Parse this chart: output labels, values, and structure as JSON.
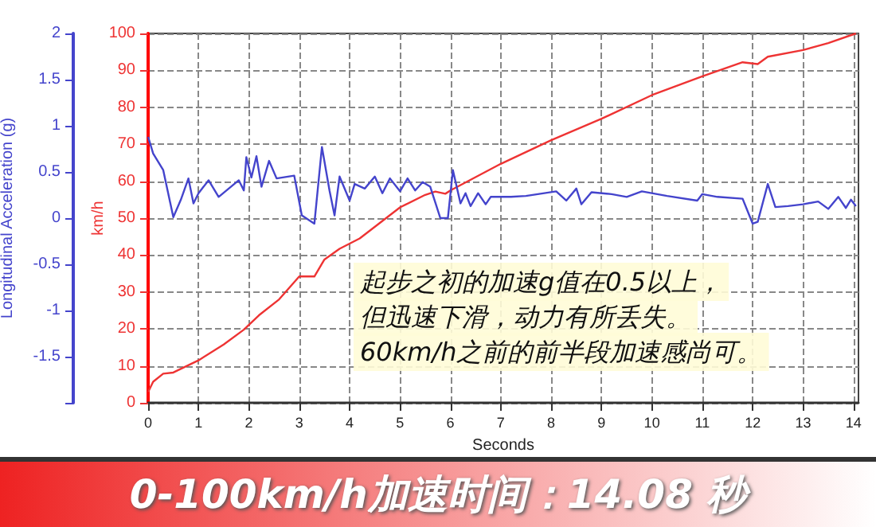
{
  "chart_data": {
    "type": "line",
    "title": "0-100km/h加速时间：14.08 秒",
    "xlabel": "Seconds",
    "ylabel": "km/h",
    "y2label": "Longitudinal Acceleration (g)",
    "annotations": [
      "起步之初的加速g值在0.5以上，",
      "但迅速下滑，动力有所丢失。",
      "60km/h之前的前半段加速感尚可。"
    ],
    "series": [
      {
        "color": "#ee3333",
        "x": [
          0,
          0.1,
          0.3,
          0.5,
          1,
          1.5,
          1.9,
          2.2,
          2.6,
          3,
          3.3,
          3.5,
          3.8,
          4.2,
          5,
          5.5,
          5.7,
          5.9,
          6,
          7,
          8,
          9,
          10,
          11,
          11.8,
          12.1,
          12.3,
          13,
          13.5,
          14.05
        ],
        "values": [
          2.9,
          5.7,
          7.9,
          8.2,
          11.5,
          15.8,
          19.8,
          23.7,
          28,
          34.2,
          34.2,
          38.8,
          41.7,
          44.5,
          52.9,
          56.3,
          57.2,
          56.6,
          57.5,
          64.7,
          71.1,
          76.9,
          83.3,
          88.4,
          92.2,
          91.7,
          93.7,
          95.5,
          97.4,
          100
        ]
      },
      {
        "color": "#4444cc",
        "axis": "y2",
        "x": [
          0,
          0.1,
          0.3,
          0.5,
          0.65,
          0.8,
          0.9,
          1,
          1.2,
          1.4,
          1.8,
          1.9,
          1.95,
          2.05,
          2.15,
          2.25,
          2.4,
          2.55,
          2.9,
          3.05,
          3.3,
          3.45,
          3.6,
          3.7,
          3.8,
          4,
          4.1,
          4.3,
          4.5,
          4.65,
          4.8,
          5,
          5.15,
          5.3,
          5.45,
          5.6,
          5.8,
          5.95,
          6.05,
          6.2,
          6.3,
          6.4,
          6.55,
          6.7,
          6.8,
          7.2,
          7.5,
          8.1,
          8.3,
          8.5,
          8.6,
          8.8,
          9.2,
          9.5,
          9.8,
          10.3,
          10.9,
          11,
          11.3,
          11.8,
          12,
          12.1,
          12.3,
          12.45,
          12.7,
          13,
          13.3,
          13.5,
          13.7,
          13.85,
          13.95,
          14.05
        ],
        "values": [
          0.88,
          0.7,
          0.52,
          0.01,
          0.2,
          0.43,
          0.16,
          0.27,
          0.41,
          0.23,
          0.41,
          0.3,
          0.66,
          0.44,
          0.67,
          0.34,
          0.62,
          0.43,
          0.46,
          0.03,
          -0.06,
          0.77,
          0.3,
          0.03,
          0.45,
          0.19,
          0.37,
          0.32,
          0.45,
          0.27,
          0.43,
          0.29,
          0.43,
          0.3,
          0.39,
          0.34,
          0,
          0,
          0.52,
          0.16,
          0.27,
          0.13,
          0.27,
          0.15,
          0.23,
          0.23,
          0.24,
          0.29,
          0.19,
          0.32,
          0.15,
          0.28,
          0.26,
          0.23,
          0.29,
          0.24,
          0.19,
          0.26,
          0.23,
          0.21,
          -0.06,
          -0.04,
          0.37,
          0.12,
          0.13,
          0.15,
          0.18,
          0.1,
          0.23,
          0.11,
          0.2,
          0.13
        ]
      }
    ],
    "xlim": [
      0,
      14.1
    ],
    "xticks": [
      0,
      1,
      2,
      3,
      4,
      5,
      6,
      7,
      8,
      9,
      10,
      11,
      12,
      13,
      14
    ],
    "ylim": [
      0,
      100
    ],
    "yticks": [
      0,
      10,
      20,
      30,
      40,
      50,
      60,
      70,
      80,
      90,
      100
    ],
    "y2lim": [
      -2,
      2
    ],
    "y2ticks": [
      2,
      1.5,
      1,
      0.5,
      0,
      -0.5,
      -1,
      -1.5,
      {
        "value": -2,
        "label": null
      }
    ],
    "grid": true,
    "marker": "none",
    "line_style": "solid"
  }
}
